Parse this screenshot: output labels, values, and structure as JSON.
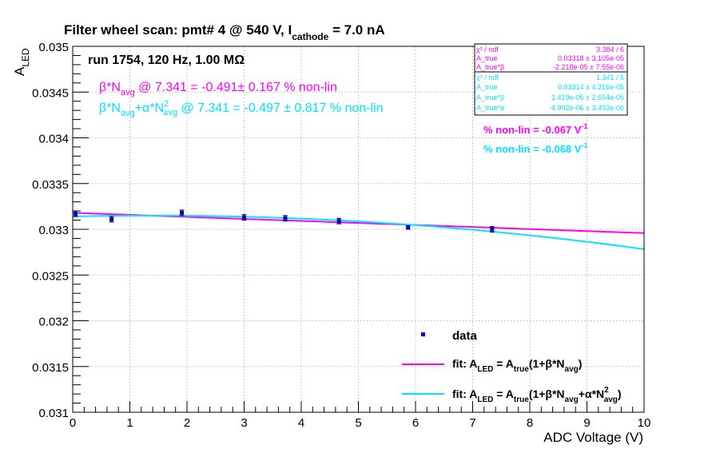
{
  "chart_data": {
    "type": "scatter",
    "title_parts": {
      "main": "Filter wheel scan: pmt#   4 @   540 V, I",
      "sub": "cathode",
      "tail": " = 7.0 nA"
    },
    "xlabel": "ADC Voltage (V)",
    "ylabel_parts": {
      "main": "A",
      "sub": "LED"
    },
    "xlim": [
      0,
      10
    ],
    "ylim": [
      0.031,
      0.035
    ],
    "x_ticks": [
      "0",
      "1",
      "2",
      "3",
      "4",
      "5",
      "6",
      "7",
      "8",
      "9",
      "10"
    ],
    "y_ticks": [
      "0.031",
      "0.0315",
      "0.032",
      "0.0325",
      "0.033",
      "0.0335",
      "0.034",
      "0.0345",
      "0.035"
    ],
    "grid": true,
    "run_label": "run 1754, 120 Hz, 1.00 MΩ",
    "colors": {
      "data": "#0000cc",
      "fit1": "#ff00ff",
      "fit2": "#00e5ff",
      "axis": "#000000",
      "grid": "#c8c8c8"
    },
    "annotations": {
      "fit1_nonlin": {
        "p1": "β*N",
        "s1": "avg",
        "p2": " @ 7.341 = -0.491",
        "p3": "± 0.167 % non-lin"
      },
      "fit2_nonlin": {
        "p1": "β*N",
        "s1": "avg",
        "p2": "+α*N",
        "sup": "2",
        "s2": "avg",
        "p3": " @ 7.341 = -0.497 ± 0.817 % non-lin"
      },
      "fit1_per_volt": {
        "p1": "% non-lin = -0.067 V",
        "sup": "-1"
      },
      "fit2_per_volt": {
        "p1": "% non-lin = -0.068 V",
        "sup": "-1"
      }
    },
    "stats_fit1": [
      {
        "label": "χ² / ndf",
        "value": "3.384 / 6"
      },
      {
        "label": "A_true",
        "value": "0.03318 ± 3.105e-05"
      },
      {
        "label": "A_true*β",
        "value": "-2.218e-05 ± 7.55e-06"
      }
    ],
    "stats_fit2": [
      {
        "label": "χ² / ndf",
        "value": "1.341 / 5"
      },
      {
        "label": "A_true",
        "value": "0.03314 ± 4.216e-05"
      },
      {
        "label": "A_true*β",
        "value": "1.419e-05 ± 2.654e-05"
      },
      {
        "label": "A_true*α",
        "value": "-4.992e-06 ± 3.493e-06"
      }
    ],
    "legend": [
      {
        "kind": "marker",
        "text": "data"
      },
      {
        "kind": "line1",
        "p1": "fit: A",
        "s1": "LED",
        "p2": " = A",
        "s2": "true",
        "p3": "(1+β*N",
        "s3": "avg",
        "p4": ")"
      },
      {
        "kind": "line2",
        "p1": "fit: A",
        "s1": "LED",
        "p2": " = A",
        "s2": "true",
        "p3": "(1+β*N",
        "s3": "avg",
        "p4": "+α*N",
        "sup": "2",
        "s4": "avg",
        "p5": ")"
      }
    ],
    "series": [
      {
        "name": "data",
        "x": [
          0.05,
          0.68,
          1.91,
          3.0,
          3.72,
          4.66,
          5.87,
          7.34
        ],
        "y": [
          0.03317,
          0.03311,
          0.03318,
          0.03313,
          0.03312,
          0.03309,
          0.03302,
          0.033
        ],
        "yerr": [
          3e-05,
          3e-05,
          3e-05,
          3e-05,
          3e-05,
          3e-05,
          2e-05,
          3e-05
        ]
      }
    ],
    "fits": [
      {
        "model": "A_true*(1+beta*x)",
        "A": 0.03318,
        "Abeta": -2.218e-05
      },
      {
        "model": "A_true*(1+beta*x+alpha*x^2)",
        "A": 0.03314,
        "Abeta": 1.419e-05,
        "Aalpha": -4.992e-06
      }
    ]
  }
}
